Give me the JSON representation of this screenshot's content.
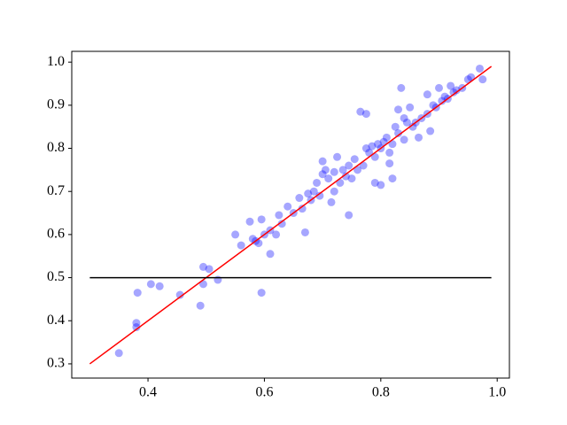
{
  "chart_data": {
    "type": "scatter",
    "xlim": [
      0.269,
      1.021
    ],
    "ylim": [
      0.267,
      1.025
    ],
    "xticks": [
      0.4,
      0.6,
      0.8,
      {
        "value": 1,
        "label": "1.0"
      }
    ],
    "yticks": [
      0.3,
      0.4,
      0.5,
      0.6,
      0.7,
      0.8,
      0.9,
      {
        "value": 1,
        "label": "1.0"
      }
    ],
    "series": [
      {
        "type": "scatter",
        "color": "#0000ff",
        "x": [
          0.35,
          0.38,
          0.38,
          0.382,
          0.405,
          0.42,
          0.455,
          0.49,
          0.495,
          0.495,
          0.505,
          0.52,
          0.55,
          0.56,
          0.575,
          0.58,
          0.585,
          0.59,
          0.595,
          0.595,
          0.6,
          0.61,
          0.61,
          0.62,
          0.625,
          0.63,
          0.64,
          0.65,
          0.66,
          0.665,
          0.67,
          0.675,
          0.68,
          0.685,
          0.69,
          0.695,
          0.7,
          0.7,
          0.705,
          0.71,
          0.715,
          0.72,
          0.72,
          0.725,
          0.73,
          0.735,
          0.74,
          0.745,
          0.745,
          0.75,
          0.755,
          0.76,
          0.765,
          0.77,
          0.775,
          0.775,
          0.78,
          0.785,
          0.79,
          0.79,
          0.795,
          0.8,
          0.8,
          0.805,
          0.81,
          0.815,
          0.815,
          0.82,
          0.82,
          0.825,
          0.83,
          0.83,
          0.835,
          0.84,
          0.84,
          0.845,
          0.85,
          0.855,
          0.86,
          0.865,
          0.87,
          0.88,
          0.88,
          0.885,
          0.89,
          0.895,
          0.9,
          0.905,
          0.91,
          0.915,
          0.92,
          0.925,
          0.93,
          0.94,
          0.95,
          0.955,
          0.97,
          0.975
        ],
        "values": [
          0.325,
          0.385,
          0.395,
          0.465,
          0.485,
          0.48,
          0.46,
          0.435,
          0.485,
          0.525,
          0.52,
          0.495,
          0.6,
          0.575,
          0.63,
          0.59,
          0.585,
          0.58,
          0.635,
          0.465,
          0.6,
          0.555,
          0.61,
          0.6,
          0.645,
          0.625,
          0.665,
          0.65,
          0.685,
          0.66,
          0.605,
          0.695,
          0.68,
          0.7,
          0.72,
          0.69,
          0.74,
          0.77,
          0.75,
          0.73,
          0.675,
          0.7,
          0.745,
          0.78,
          0.72,
          0.75,
          0.735,
          0.645,
          0.76,
          0.73,
          0.775,
          0.75,
          0.885,
          0.76,
          0.8,
          0.88,
          0.79,
          0.805,
          0.78,
          0.72,
          0.81,
          0.715,
          0.8,
          0.815,
          0.825,
          0.79,
          0.765,
          0.81,
          0.73,
          0.85,
          0.835,
          0.89,
          0.94,
          0.82,
          0.87,
          0.86,
          0.895,
          0.85,
          0.86,
          0.825,
          0.87,
          0.88,
          0.925,
          0.84,
          0.9,
          0.895,
          0.94,
          0.91,
          0.92,
          0.915,
          0.945,
          0.93,
          0.935,
          0.94,
          0.96,
          0.965,
          0.985,
          0.96
        ]
      },
      {
        "type": "line",
        "color": "#ff0000",
        "x": [
          0.3,
          0.99
        ],
        "values": [
          0.3,
          0.99
        ]
      },
      {
        "type": "line",
        "color": "#000000",
        "x": [
          0.3,
          0.99
        ],
        "values": [
          0.5,
          0.5
        ]
      }
    ]
  }
}
